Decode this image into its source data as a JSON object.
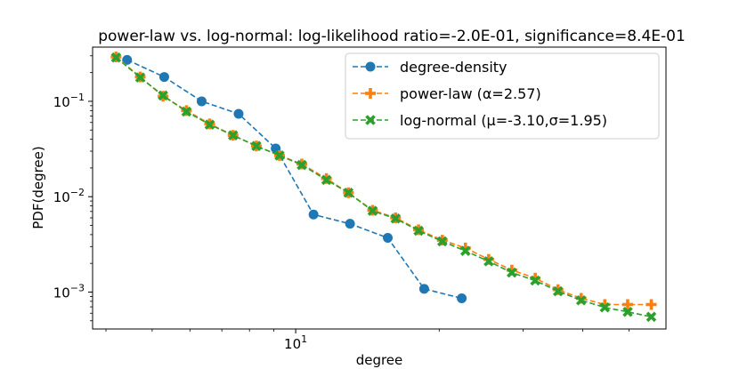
{
  "chart_data": {
    "type": "line",
    "title": "power-law vs. log-normal: log-likelihood ratio=-2.0E-01, significance=8.4E-01",
    "xlabel": "degree",
    "ylabel": "PDF(degree)",
    "xscale": "log",
    "yscale": "log",
    "xlim": [
      3.75,
      59.8
    ],
    "ylim": [
      0.00041,
      0.37
    ],
    "grid": false,
    "legend_position": "top-right",
    "x_ticks": [
      {
        "value": 10,
        "base": "10",
        "exp": "1"
      }
    ],
    "y_ticks": [
      {
        "value": 0.1,
        "base": "10",
        "exp": "−1"
      },
      {
        "value": 0.01,
        "base": "10",
        "exp": "−2"
      },
      {
        "value": 0.001,
        "base": "10",
        "exp": "−3"
      }
    ],
    "series": [
      {
        "name": "degree-density",
        "color": "#1f77b4",
        "marker": "circle",
        "x": [
          4.43,
          5.3,
          6.35,
          7.59,
          9.08,
          10.9,
          13.0,
          15.6,
          18.6,
          22.3,
          26.6,
          31.9,
          38.1
        ],
        "y": [
          0.272,
          0.18,
          0.1,
          0.074,
          0.032,
          0.0065,
          0.0052,
          0.0037,
          0.00108,
          0.00086,
          null,
          null,
          null
        ]
      },
      {
        "name": "power-law (α=2.57)",
        "color": "#ff7f0e",
        "marker": "plus",
        "x": [
          4.2,
          4.72,
          5.27,
          5.9,
          6.6,
          7.39,
          8.27,
          9.25,
          10.3,
          11.6,
          12.9,
          14.5,
          16.2,
          18.1,
          20.3,
          22.7,
          25.4,
          28.4,
          31.8,
          35.5,
          39.7,
          44.5,
          49.7,
          55.7
        ],
        "y": [
          0.292,
          0.18,
          0.113,
          0.08,
          0.058,
          0.044,
          0.034,
          0.027,
          0.022,
          0.0155,
          0.011,
          0.0072,
          0.006,
          0.0045,
          0.0035,
          0.0029,
          0.0022,
          0.0017,
          0.0014,
          0.00106,
          0.00086,
          0.00074,
          0.00074,
          0.00074
        ]
      },
      {
        "name": "log-normal (μ=-3.10,σ=1.95)",
        "color": "#2ca02c",
        "marker": "x",
        "x": [
          4.2,
          4.72,
          5.27,
          5.9,
          6.6,
          7.39,
          8.27,
          9.25,
          10.3,
          11.6,
          12.9,
          14.5,
          16.2,
          18.1,
          20.3,
          22.7,
          25.4,
          28.4,
          31.8,
          35.5,
          39.7,
          44.5,
          49.7,
          55.7
        ],
        "y": [
          0.288,
          0.178,
          0.115,
          0.078,
          0.057,
          0.044,
          0.034,
          0.027,
          0.0215,
          0.015,
          0.011,
          0.0071,
          0.0059,
          0.0044,
          0.0034,
          0.0027,
          0.0021,
          0.0016,
          0.00132,
          0.00102,
          0.00082,
          0.00069,
          0.00062,
          0.00055
        ]
      }
    ]
  }
}
